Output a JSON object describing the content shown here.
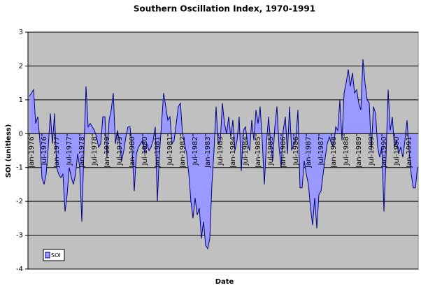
{
  "chart_data": {
    "type": "area",
    "title": "Southern Oscillation Index, 1970-1991",
    "x_label": "Date",
    "y_label": "SOI (unitless)",
    "ylim": [
      -4,
      3
    ],
    "yticks": [
      -4,
      -3,
      -2,
      -1,
      0,
      1,
      2,
      3
    ],
    "grid": true,
    "legend": "lower left",
    "categories": [
      "Jan-1976",
      null,
      null,
      null,
      null,
      null,
      "Jul-1976",
      null,
      null,
      null,
      null,
      null,
      "Jan-1977",
      null,
      null,
      null,
      null,
      null,
      "Jul-1977",
      null,
      null,
      null,
      null,
      null,
      "Jan-1978",
      null,
      null,
      null,
      null,
      null,
      "Jul-1978",
      null,
      null,
      null,
      null,
      null,
      "Jan-1979",
      null,
      null,
      null,
      null,
      null,
      "Jul-1979",
      null,
      null,
      null,
      null,
      null,
      "Jan-1980",
      null,
      null,
      null,
      null,
      null,
      "Jul-1980",
      null,
      null,
      null,
      null,
      null,
      "Jan-1981",
      null,
      null,
      null,
      null,
      null,
      "Jul-1981",
      null,
      null,
      null,
      null,
      null,
      "Jan-1982",
      null,
      null,
      null,
      null,
      null,
      "Jul-1982",
      null,
      null,
      null,
      null,
      null,
      "Jan-1983",
      null,
      null,
      null,
      null,
      null,
      "Jul-1983",
      null,
      null,
      null,
      null,
      null,
      "Jan-1984",
      null,
      null,
      null,
      null,
      null,
      "Jul-1984",
      null,
      null,
      null,
      null,
      null,
      "Jan-1985",
      null,
      null,
      null,
      null,
      null,
      "Jul-1985",
      null,
      null,
      null,
      null,
      null,
      "Jan-1986",
      null,
      null,
      null,
      null,
      null,
      "Jul-1986",
      null,
      null,
      null,
      null,
      null,
      "Jan-1987",
      null,
      null,
      null,
      null,
      null,
      "Jul-1987",
      null,
      null,
      null,
      null,
      null,
      "Jan-1988",
      null,
      null,
      null,
      null,
      null,
      "Jul-1988",
      null,
      null,
      null,
      null,
      null,
      "Jan-1989",
      null,
      null,
      null,
      null,
      null,
      "Jul-1989",
      null,
      null,
      null,
      null,
      null,
      "Jan-1990",
      null,
      null,
      null,
      null,
      null,
      "Jul-1990",
      null,
      null,
      null,
      null,
      null,
      "Jan-1991",
      null,
      null,
      null,
      null,
      null
    ],
    "series": [
      {
        "name": "SOI",
        "color": "#9999ff",
        "edge_color": "#000080",
        "values": [
          1.1,
          1.2,
          1.3,
          0.3,
          0.5,
          -0.2,
          -1.3,
          -1.5,
          -1.2,
          -0.4,
          0.6,
          -0.3,
          0.6,
          -1.0,
          -1.2,
          -1.3,
          -1.2,
          -2.3,
          -1.8,
          -1.0,
          -1.3,
          -1.5,
          -1.2,
          -0.6,
          -1.0,
          -2.6,
          -0.5,
          1.4,
          0.2,
          0.3,
          0.2,
          0.1,
          -0.1,
          -0.4,
          -0.3,
          0.5,
          0.5,
          -0.7,
          0.4,
          0.7,
          1.2,
          -0.3,
          0.1,
          -0.3,
          -0.8,
          -0.5,
          -0.1,
          0.2,
          0.2,
          -0.5,
          -1.7,
          -0.6,
          -0.4,
          -0.3,
          -0.2,
          -0.6,
          -0.3,
          -0.5,
          -0.4,
          -0.2,
          0.2,
          -2.0,
          -0.6,
          0.3,
          1.2,
          0.8,
          0.4,
          0.5,
          -0.3,
          -0.2,
          0.3,
          0.8,
          0.9,
          0,
          -0.3,
          -0.6,
          -1.2,
          -2.0,
          -2.5,
          -1.9,
          -2.4,
          -2.2,
          -3.1,
          -2.6,
          -3.3,
          -3.4,
          -3.1,
          -1.5,
          -0.5,
          0.8,
          -0.3,
          -0.2,
          0.9,
          0.3,
          0,
          0.5,
          -0.1,
          0.4,
          -0.5,
          -0.2,
          0.5,
          -1.1,
          0.1,
          0.2,
          -0.3,
          -0.5,
          0.4,
          -0.2,
          0.7,
          0.3,
          0.8,
          -0.2,
          -1.5,
          -0.3,
          0.5,
          -0.3,
          -0.8,
          0.2,
          0.8,
          -0.4,
          -1.0,
          0.1,
          0.5,
          -0.6,
          0.8,
          -0.5,
          -0.3,
          -0.2,
          0.7,
          -1.6,
          -1.6,
          -0.8,
          -1.2,
          -1.5,
          -2.2,
          -2.7,
          -1.9,
          -2.8,
          -1.8,
          -1.7,
          -1.2,
          -0.7,
          -0.3,
          -0.1,
          -0.3,
          -0.4,
          0.2,
          0.1,
          1.0,
          -0.2,
          1.2,
          1.5,
          1.9,
          1.4,
          1.8,
          1.2,
          1.3,
          0.9,
          0.7,
          2.2,
          1.5,
          1.0,
          0.9,
          -0.5,
          0.8,
          0.6,
          -0.4,
          -0.7,
          -0.4,
          -2.3,
          -0.7,
          1.3,
          0.1,
          0.5,
          -0.4,
          -0.2,
          -0.6,
          -0.4,
          -0.7,
          -0.2,
          0.4,
          -0.5,
          -1.2,
          -1.6,
          -1.6,
          -1.0
        ]
      }
    ]
  }
}
